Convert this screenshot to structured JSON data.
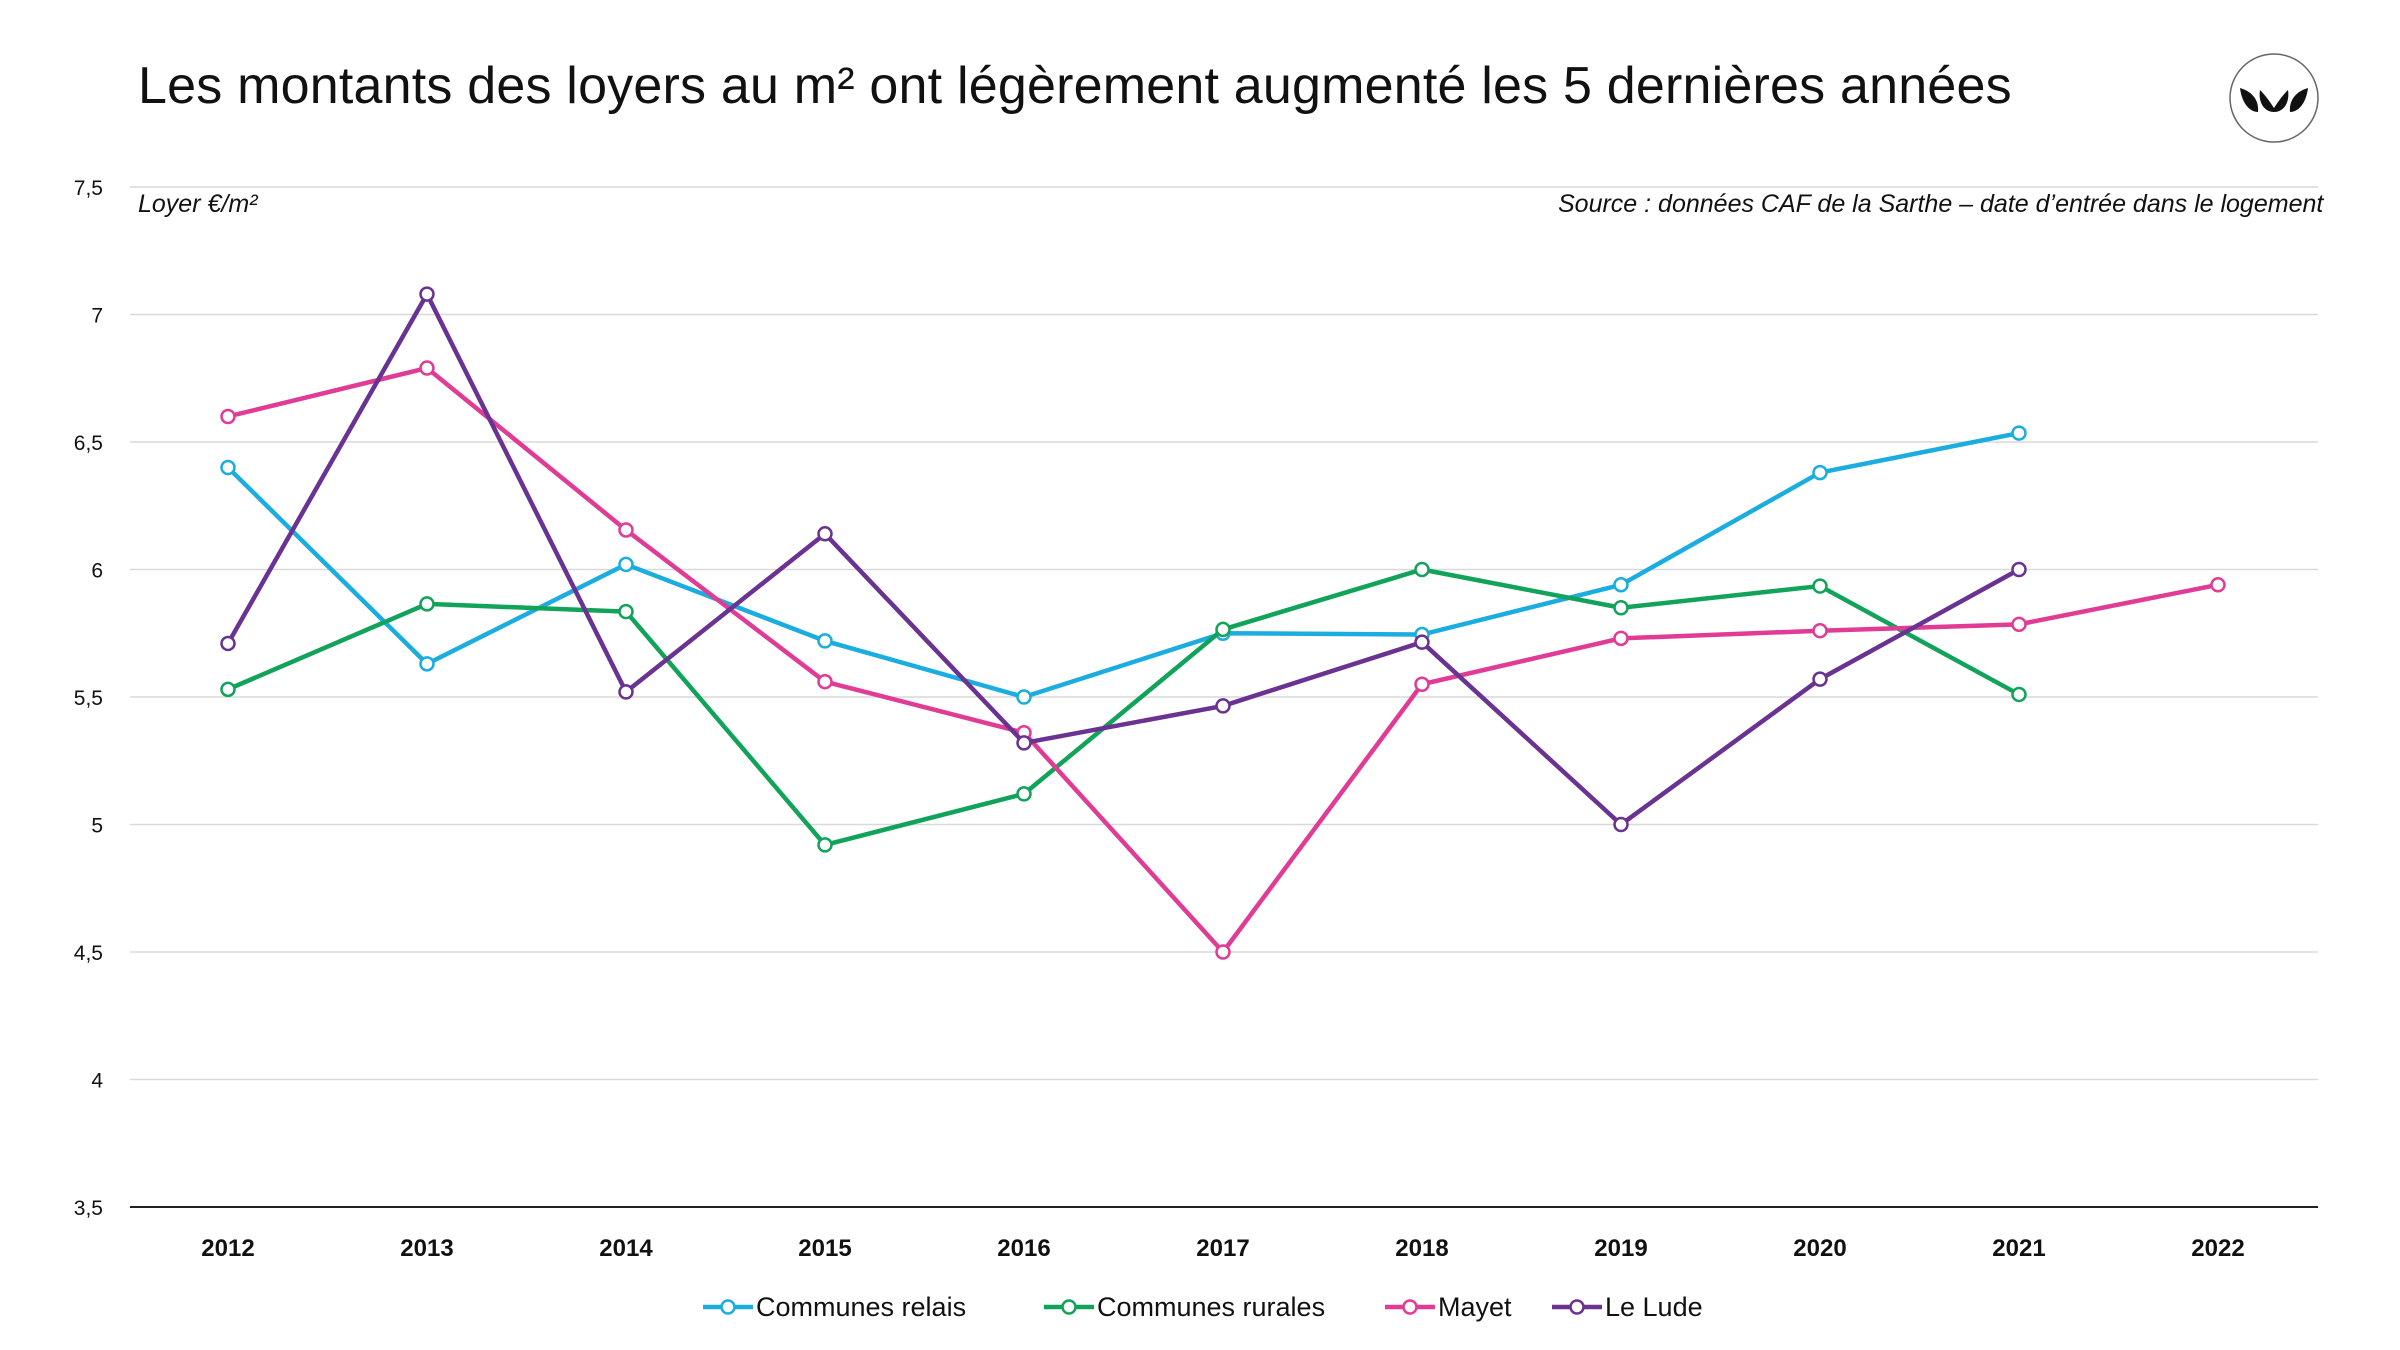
{
  "page": {
    "title": "Les montants des loyers au m² ont légèrement augmenté les 5 dernières années",
    "ylabel": "Loyer €/m²",
    "source": "Source : données CAF de la Sarthe – date d’entrée dans le logement"
  },
  "chart_data": {
    "type": "line",
    "title": "Les montants des loyers au m² ont légèrement augmenté les 5 dernières années",
    "xlabel": "",
    "ylabel": "Loyer €/m²",
    "categories": [
      "2012",
      "2013",
      "2014",
      "2015",
      "2016",
      "2017",
      "2018",
      "2019",
      "2020",
      "2021",
      "2022"
    ],
    "ylim": [
      3.5,
      7.5
    ],
    "yticks": [
      3.5,
      4,
      4.5,
      5,
      5.5,
      6,
      6.5,
      7,
      7.5
    ],
    "ytick_labels": [
      "3,5",
      "4",
      "4,5",
      "5",
      "5,5",
      "6",
      "6,5",
      "7",
      "7,5"
    ],
    "grid": true,
    "legend_position": "bottom",
    "series": [
      {
        "name": "Communes relais",
        "color": "#1BADDF",
        "values": [
          6.4,
          5.63,
          6.02,
          5.72,
          5.5,
          5.75,
          5.745,
          5.94,
          6.38,
          6.535,
          null
        ]
      },
      {
        "name": "Communes rurales",
        "color": "#12A35A",
        "values": [
          5.53,
          5.865,
          5.835,
          4.92,
          5.12,
          5.765,
          6.0,
          5.85,
          5.935,
          5.51,
          null
        ]
      },
      {
        "name": "Mayet",
        "color": "#E03C96",
        "values": [
          6.6,
          6.79,
          6.155,
          5.56,
          5.36,
          4.5,
          5.55,
          5.73,
          5.76,
          5.785,
          5.94
        ]
      },
      {
        "name": "Le Lude",
        "color": "#6A3291",
        "values": [
          5.71,
          7.08,
          5.52,
          6.14,
          5.32,
          5.465,
          5.715,
          5.0,
          5.57,
          6.0,
          null
        ]
      }
    ]
  }
}
